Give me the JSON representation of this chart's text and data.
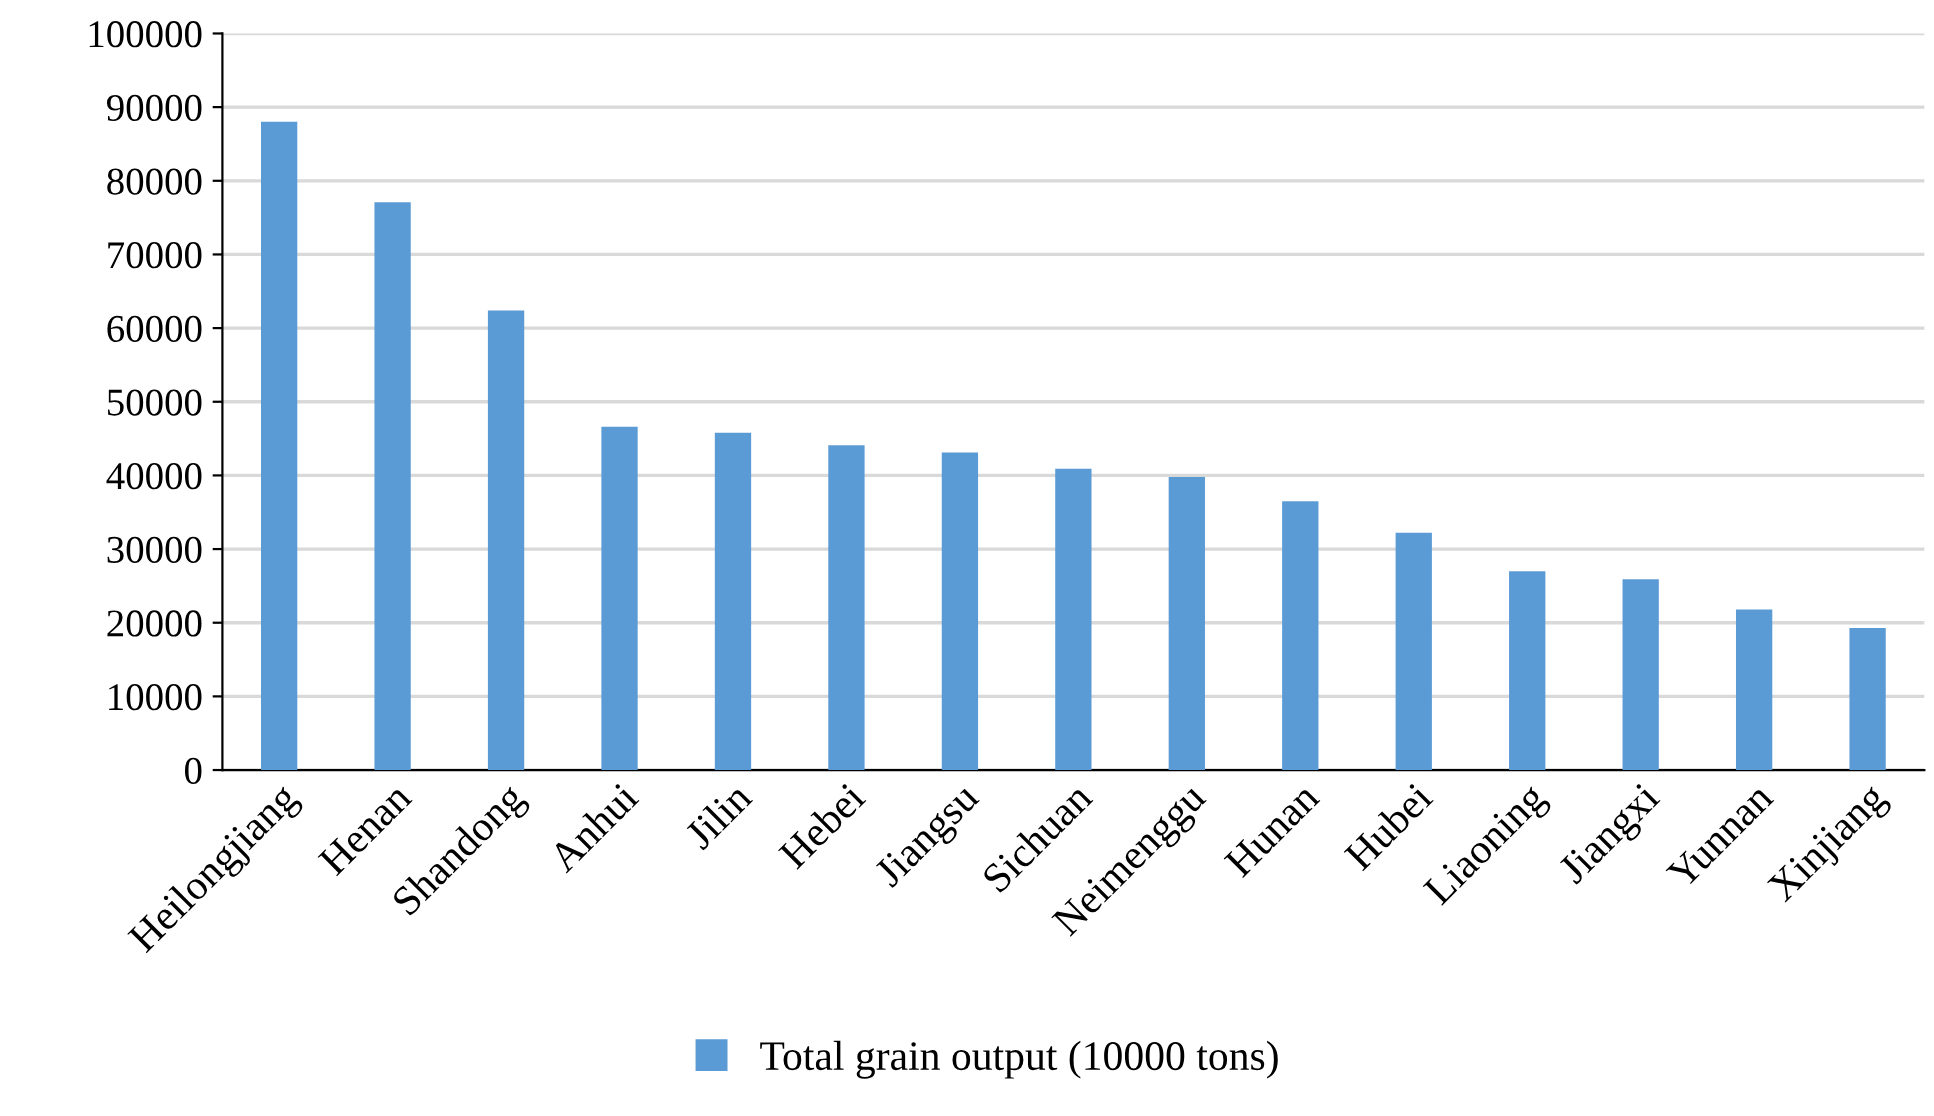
{
  "chart_data": {
    "type": "bar",
    "categories": [
      "Heilongjiang",
      "Henan",
      "Shandong",
      "Anhui",
      "Jilin",
      "Hebei",
      "Jiangsu",
      "Sichuan",
      "Neimenggu",
      "Hunan",
      "Hubei",
      "Liaoning",
      "Jiangxi",
      "Yunnan",
      "Xinjiang"
    ],
    "series": [
      {
        "name": "Total grain output (10000 tons)",
        "color": "#5b9bd5",
        "values": [
          88000,
          77100,
          62400,
          46600,
          45800,
          44100,
          43100,
          40900,
          39800,
          36500,
          32200,
          27000,
          25900,
          21800,
          19300
        ]
      }
    ],
    "ylim": [
      0,
      100000
    ],
    "yticks": [
      0,
      10000,
      20000,
      30000,
      40000,
      50000,
      60000,
      70000,
      80000,
      90000,
      100000
    ],
    "grid": "y",
    "legend": "bottom"
  }
}
